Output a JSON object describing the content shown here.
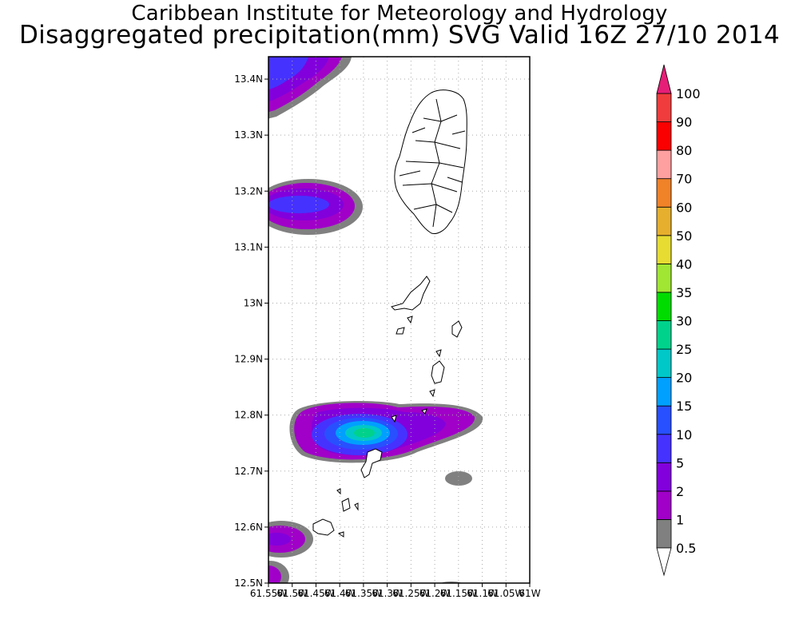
{
  "header": {
    "title_line1": "Caribbean Institute for Meteorology and Hydrology",
    "title_line2": "Disaggregated precipitation(mm) SVG Valid 16Z 27/10 2014"
  },
  "map": {
    "lon_range": [
      -61.55,
      -61.0
    ],
    "lat_range": [
      12.5,
      13.44
    ],
    "y_tick_labels": [
      {
        "lat": 12.5,
        "label": "12.5N"
      },
      {
        "lat": 12.6,
        "label": "12.6N"
      },
      {
        "lat": 12.7,
        "label": "12.7N"
      },
      {
        "lat": 12.8,
        "label": "12.8N"
      },
      {
        "lat": 12.9,
        "label": "12.9N"
      },
      {
        "lat": 13.0,
        "label": "13N"
      },
      {
        "lat": 13.1,
        "label": "13.1N"
      },
      {
        "lat": 13.2,
        "label": "13.2N"
      },
      {
        "lat": 13.3,
        "label": "13.3N"
      },
      {
        "lat": 13.4,
        "label": "13.4N"
      }
    ],
    "x_tick_labels": [
      {
        "lon": -61.55,
        "label": "61.55W"
      },
      {
        "lon": -61.5,
        "label": "61.5W"
      },
      {
        "lon": -61.45,
        "label": "61.45W"
      },
      {
        "lon": -61.4,
        "label": "61.4W"
      },
      {
        "lon": -61.35,
        "label": "61.35W"
      },
      {
        "lon": -61.3,
        "label": "61.3W"
      },
      {
        "lon": -61.25,
        "label": "61.25W"
      },
      {
        "lon": -61.2,
        "label": "61.2W"
      },
      {
        "lon": -61.15,
        "label": "61.15W"
      },
      {
        "lon": -61.1,
        "label": "61.1W"
      },
      {
        "lon": -61.05,
        "label": "61.05W"
      },
      {
        "lon": -61.0,
        "label": "61W"
      }
    ],
    "grid": "dotted"
  },
  "colorbar": {
    "levels": [
      {
        "label": "0.5",
        "color": "#808080"
      },
      {
        "label": "1",
        "color": "#a000c8"
      },
      {
        "label": "2",
        "color": "#8200dc"
      },
      {
        "label": "5",
        "color": "#4632ff"
      },
      {
        "label": "10",
        "color": "#2850ff"
      },
      {
        "label": "15",
        "color": "#00a0ff"
      },
      {
        "label": "20",
        "color": "#00c8c8"
      },
      {
        "label": "25",
        "color": "#00d28c"
      },
      {
        "label": "30",
        "color": "#00dc00"
      },
      {
        "label": "35",
        "color": "#a0e632"
      },
      {
        "label": "40",
        "color": "#e6dc32"
      },
      {
        "label": "50",
        "color": "#e6af2d"
      },
      {
        "label": "60",
        "color": "#f08228"
      },
      {
        "label": "70",
        "color": "#ffa0a0"
      },
      {
        "label": "80",
        "color": "#fa0000"
      },
      {
        "label": "90",
        "color": "#f03c3c"
      },
      {
        "label": "100",
        "color": "#e61e78"
      }
    ],
    "under_color": "#ffffff",
    "over_color": "#e61e78"
  }
}
